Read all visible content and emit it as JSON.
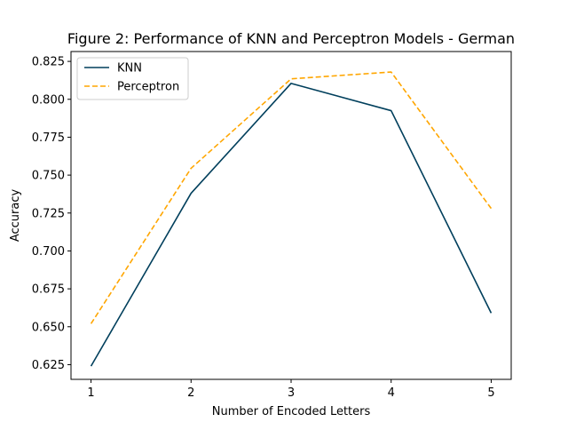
{
  "chart_data": {
    "type": "line",
    "title": "Figure 2: Performance of KNN and Perceptron Models - German",
    "xlabel": "Number of Encoded Letters",
    "ylabel": "Accuracy",
    "x": [
      1,
      2,
      3,
      4,
      5
    ],
    "xticks": [
      "1",
      "2",
      "3",
      "4",
      "5"
    ],
    "yticks": [
      "0.625",
      "0.650",
      "0.675",
      "0.700",
      "0.725",
      "0.750",
      "0.775",
      "0.800",
      "0.825"
    ],
    "ylim": [
      0.6153,
      0.8315
    ],
    "xlim": [
      0.8,
      5.2
    ],
    "grid": false,
    "legend_position": "upper-left",
    "series": [
      {
        "name": "KNN",
        "values": [
          0.624,
          0.738,
          0.8105,
          0.7925,
          0.659
        ],
        "color": "#003f5c",
        "line_style": "solid"
      },
      {
        "name": "Perceptron",
        "values": [
          0.652,
          0.7545,
          0.8135,
          0.818,
          0.728
        ],
        "color": "#ffa600",
        "line_style": "dashed"
      }
    ]
  }
}
